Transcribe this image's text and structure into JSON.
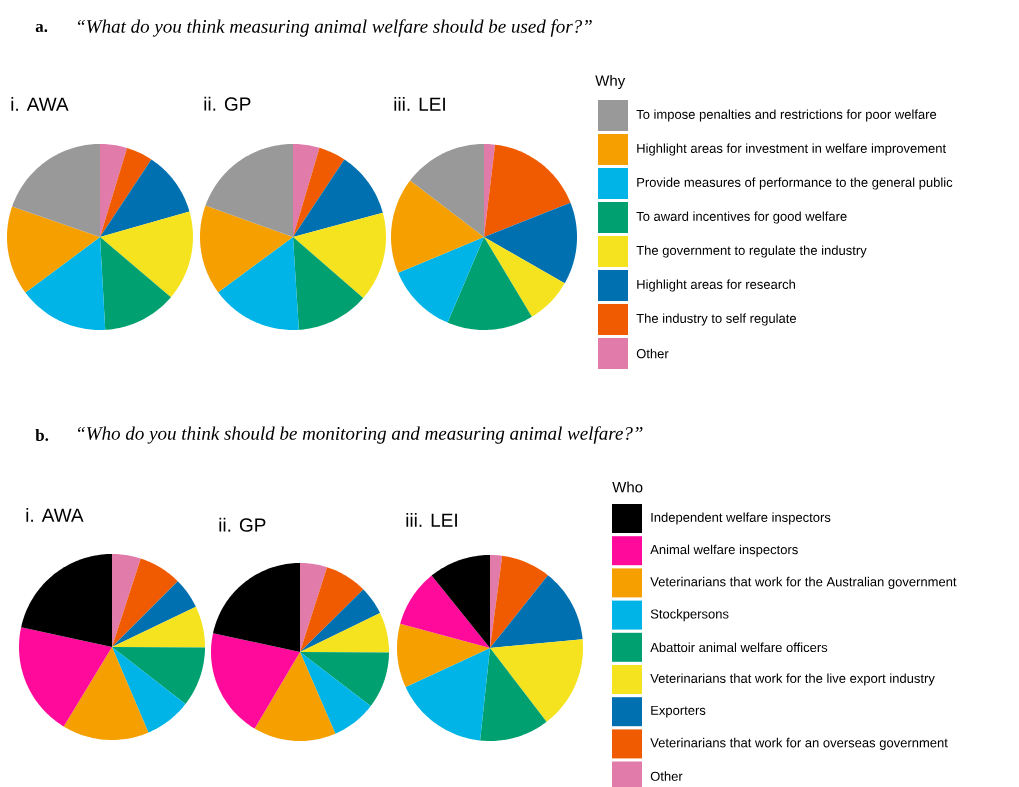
{
  "chart_data": [
    {
      "type": "pie",
      "title": "i. AWA",
      "annotations": [
        "a.",
        "“What do you think measuring animal welfare should be used for?”"
      ],
      "categories": [
        null,
        null,
        null,
        null,
        null,
        null,
        null,
        null
      ],
      "values": [
        19.7,
        15.5,
        15.7,
        12.9,
        15.6,
        11.3,
        4.6,
        4.7
      ],
      "colors": [
        "#999999",
        "#F5A000",
        "#00B4E8",
        "#00A070",
        "#F5E320",
        "#0070B0",
        "#F05A00",
        "#E07BAA"
      ]
    },
    {
      "type": "pie",
      "title": "ii. GP",
      "categories": [
        null,
        null,
        null,
        null,
        null,
        null,
        null,
        null
      ],
      "values": [
        19.5,
        15.6,
        15.9,
        12.6,
        15.6,
        11.5,
        4.7,
        4.6
      ],
      "colors": [
        "#999999",
        "#F5A000",
        "#00B4E8",
        "#00A070",
        "#F5E320",
        "#0070B0",
        "#F05A00",
        "#E07BAA"
      ]
    },
    {
      "type": "pie",
      "title": "iii. LEI",
      "legend": "right",
      "legend_title": "Why",
      "categories": [
        "To impose penalties and restrictions for poor welfare",
        "Highlight areas for investment in welfare improvement",
        "Provide measures of performance to the general public",
        "To award incentives for good welfare",
        "The government to regulate the industry",
        "Highlight areas for research",
        "The industry to self regulate",
        "Other"
      ],
      "values": [
        14.6,
        16.7,
        12.3,
        15.0,
        8.1,
        14.3,
        17.1,
        1.9
      ],
      "colors": [
        "#999999",
        "#F5A000",
        "#00B4E8",
        "#00A070",
        "#F5E320",
        "#0070B0",
        "#F05A00",
        "#E07BAA"
      ]
    },
    {
      "type": "pie",
      "title": "i. AWA",
      "annotations": [
        "b.",
        "“Who do you think should be monitoring and measuring animal welfare?”"
      ],
      "categories": [
        null,
        null,
        null,
        null,
        null,
        null,
        null,
        null,
        null
      ],
      "values": [
        21.6,
        19.7,
        15.1,
        8.1,
        10.4,
        7.2,
        5.4,
        7.5,
        5.0
      ],
      "colors": [
        "#000000",
        "#FF0A9B",
        "#F5A000",
        "#00B4E8",
        "#00A070",
        "#F5E320",
        "#0070B0",
        "#F05A00",
        "#E07BAA"
      ]
    },
    {
      "type": "pie",
      "title": "ii. GP",
      "categories": [
        null,
        null,
        null,
        null,
        null,
        null,
        null,
        null,
        null
      ],
      "values": [
        21.6,
        19.9,
        15.0,
        8.1,
        10.3,
        7.3,
        5.2,
        7.7,
        4.9
      ],
      "colors": [
        "#000000",
        "#FF0A9B",
        "#F5A000",
        "#00B4E8",
        "#00A070",
        "#F5E320",
        "#0070B0",
        "#F05A00",
        "#E07BAA"
      ]
    },
    {
      "type": "pie",
      "title": "iii. LEI",
      "legend": "right",
      "legend_title": "Who",
      "categories": [
        "Independent welfare inspectors",
        "Animal welfare inspectors",
        "Veterinarians that work for the Australian government",
        "Stockpersons",
        "Abattoir animal welfare officers",
        "Veterinarians that work for the live export industry",
        "Exporters",
        "Veterinarians that work for an overseas government",
        "Other"
      ],
      "values": [
        10.8,
        10.0,
        11.1,
        16.4,
        12.1,
        16.1,
        12.8,
        8.6,
        2.1
      ],
      "colors": [
        "#000000",
        "#FF0A9B",
        "#F5A000",
        "#00B4E8",
        "#00A070",
        "#F5E320",
        "#0070B0",
        "#F05A00",
        "#E07BAA"
      ]
    }
  ]
}
